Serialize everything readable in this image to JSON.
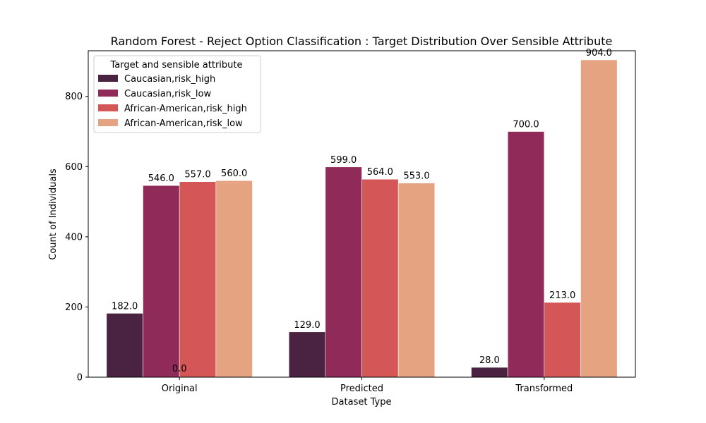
{
  "chart_data": {
    "type": "bar",
    "title": "Random Forest - Reject Option Classification : Target Distribution Over Sensible Attribute",
    "xlabel": "Dataset Type",
    "ylabel": "Count of Individuals",
    "categories": [
      "Original",
      "Predicted",
      "Transformed"
    ],
    "ylim": [
      0,
      930
    ],
    "yticks": [
      0,
      200,
      400,
      600,
      800
    ],
    "grid": false,
    "legend": {
      "title": "Target and sensible attribute",
      "placement": "top-left"
    },
    "series": [
      {
        "name": "Caucasian,risk_high",
        "color": "#4a2343",
        "values": [
          182.0,
          129.0,
          28.0
        ]
      },
      {
        "name": "Caucasian,risk_low",
        "color": "#902a58",
        "values": [
          546.0,
          599.0,
          700.0
        ]
      },
      {
        "name": "African-American,risk_high",
        "color": "#d55657",
        "values": [
          557.0,
          564.0,
          213.0
        ]
      },
      {
        "name": "African-American,risk_low",
        "color": "#e5a381",
        "values": [
          560.0,
          553.0,
          904.0
        ]
      }
    ],
    "annotations": [
      {
        "text": "0.0",
        "category": "Original",
        "value": 0
      }
    ]
  }
}
